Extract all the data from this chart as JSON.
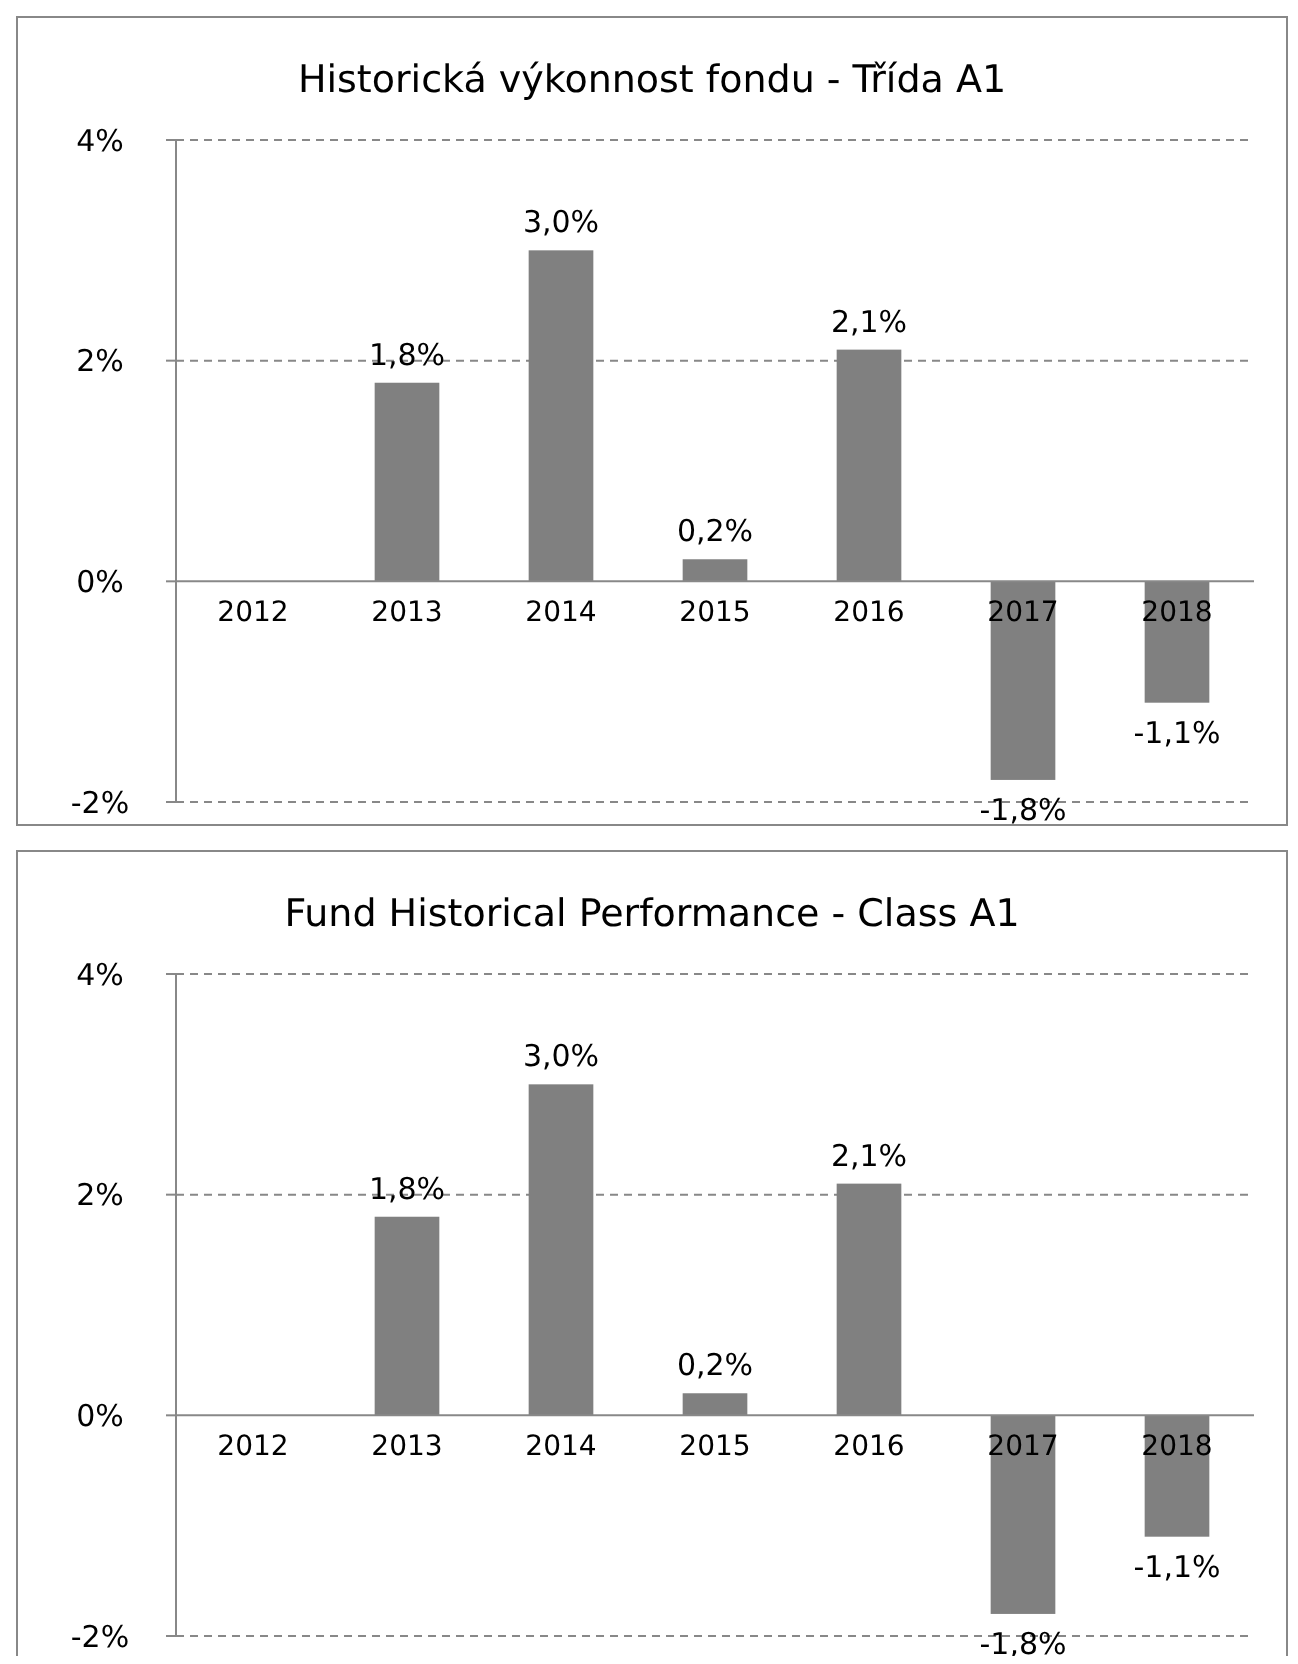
{
  "chart_data": [
    {
      "type": "bar",
      "title": "Historická výkonnost fondu - Třída A1",
      "categories": [
        "2012",
        "2013",
        "2014",
        "2015",
        "2016",
        "2017",
        "2018"
      ],
      "values": [
        null,
        1.8,
        3.0,
        0.2,
        2.1,
        -1.8,
        -1.1
      ],
      "value_labels": [
        null,
        "1,8%",
        "3,0%",
        "0,2%",
        "2,1%",
        "-1,8%",
        "-1,1%"
      ],
      "color": "#808080",
      "ylim": [
        -2,
        4
      ],
      "yticks": [
        {
          "value": -2,
          "label": "-2%"
        },
        {
          "value": 0,
          "label": "0%"
        },
        {
          "value": 2,
          "label": "2%"
        },
        {
          "value": 4,
          "label": "4%"
        }
      ],
      "grid": "y"
    },
    {
      "type": "bar",
      "title": "Fund Historical Performance  - Class A1",
      "categories": [
        "2012",
        "2013",
        "2014",
        "2015",
        "2016",
        "2017",
        "2018"
      ],
      "values": [
        null,
        1.8,
        3.0,
        0.2,
        2.1,
        -1.8,
        -1.1
      ],
      "value_labels": [
        null,
        "1,8%",
        "3,0%",
        "0,2%",
        "2,1%",
        "-1,8%",
        "-1,1%"
      ],
      "color": "#808080",
      "ylim": [
        -2,
        4
      ],
      "yticks": [
        {
          "value": -2,
          "label": "-2%"
        },
        {
          "value": 0,
          "label": "0%"
        },
        {
          "value": 2,
          "label": "2%"
        },
        {
          "value": 4,
          "label": "4%"
        }
      ],
      "grid": "y"
    }
  ]
}
